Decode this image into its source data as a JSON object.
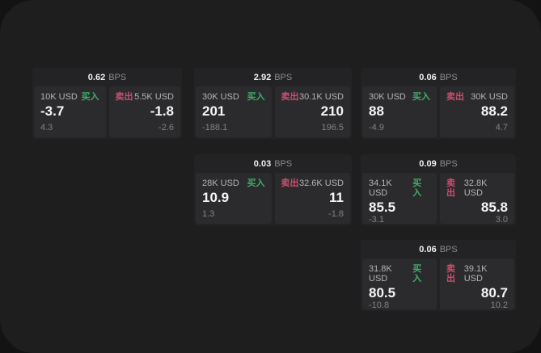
{
  "page": {
    "background": "#1e1e1f",
    "outer_background": "#131313"
  },
  "labels": {
    "bps": "BPS",
    "buy": "买入",
    "sell": "卖出"
  },
  "colors": {
    "buy": "#3fae68",
    "sell": "#cf4d6e",
    "panel": "#2b2b2d",
    "card": "#232325"
  },
  "cards": [
    {
      "bps": "0.62",
      "buy": {
        "amount": "10K USD",
        "value": "-3.7",
        "delta": "4.3"
      },
      "sell": {
        "amount": "5.5K USD",
        "value": "-1.8",
        "delta": "-2.6"
      }
    },
    {
      "bps": "2.92",
      "buy": {
        "amount": "30K USD",
        "value": "201",
        "delta": "-188.1"
      },
      "sell": {
        "amount": "30.1K USD",
        "value": "210",
        "delta": "196.5"
      }
    },
    {
      "bps": "0.06",
      "buy": {
        "amount": "30K USD",
        "value": "88",
        "delta": "-4.9"
      },
      "sell": {
        "amount": "30K USD",
        "value": "88.2",
        "delta": "4.7"
      }
    },
    {
      "bps": "0.03",
      "buy": {
        "amount": "28K USD",
        "value": "10.9",
        "delta": "1.3"
      },
      "sell": {
        "amount": "32.6K USD",
        "value": "11",
        "delta": "-1.8"
      }
    },
    {
      "bps": "0.09",
      "buy": {
        "amount": "34.1K USD",
        "value": "85.5",
        "delta": "-3.1"
      },
      "sell": {
        "amount": "32.8K USD",
        "value": "85.8",
        "delta": "3.0"
      }
    },
    {
      "bps": "0.06",
      "buy": {
        "amount": "31.8K USD",
        "value": "80.5",
        "delta": "-10.8"
      },
      "sell": {
        "amount": "39.1K USD",
        "value": "80.7",
        "delta": "10.2"
      }
    }
  ]
}
